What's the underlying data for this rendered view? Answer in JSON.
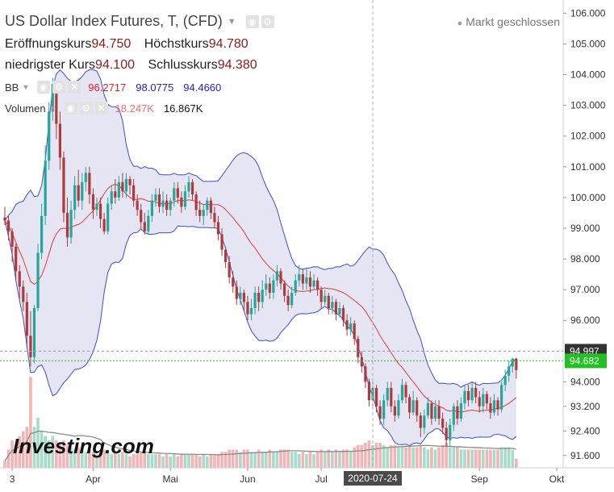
{
  "header": {
    "title": "US Dollar Index Futures, T, (CFD)",
    "market_status": "Markt geschlossen",
    "open_label": "Eröffnungskurs",
    "open_value": "94.750",
    "high_label": "Höchstkurs",
    "high_value": "94.780",
    "low_label": "niedrigster Kurs",
    "low_value": "94.100",
    "close_label": "Schlusskurs",
    "close_value": "94.380"
  },
  "indicators": {
    "bb_label": "BB",
    "bb_upper": "96.2717",
    "bb_middle": "98.0775",
    "bb_lower": "94.4660",
    "volume_label": "Volumen",
    "volume_1": "18.247K",
    "volume_2": "16.867K"
  },
  "icons": [
    "chevron-down-icon",
    "eye-icon",
    "gear-icon",
    "close-icon"
  ],
  "colors": {
    "up": "#26a69a",
    "down": "#b03a3a",
    "band_fill": "#dcdcf0",
    "band_line": "#3a4fd0",
    "middle_line": "#e03b3b",
    "last_price_box": "#333333",
    "close_line": "#22c022"
  },
  "watermark": "Investing.com",
  "chart_data": {
    "type": "candlestick",
    "y_ticks": [
      "106.000",
      "105.000",
      "104.000",
      "103.000",
      "102.000",
      "101.000",
      "100.000",
      "99.000",
      "98.000",
      "97.000",
      "96.000",
      "94.000",
      "93.200",
      "92.400",
      "91.600"
    ],
    "x_ticks": [
      "3",
      "Apr",
      "Mai",
      "Jun",
      "Jul",
      "Sep",
      "Okt"
    ],
    "crosshair_date": "2020-07-24",
    "last_price_label": "94.997",
    "close_price_label": "94.682",
    "ylim": [
      91.2,
      106.3
    ],
    "x_index_range": [
      0,
      142
    ],
    "crosshair_index": 100,
    "tick_indices": {
      "3": 2,
      "Apr": 24,
      "Mai": 45,
      "Jun": 66,
      "Jul": 86,
      "Sep": 129,
      "Okt": 150
    },
    "volume_max": 55000,
    "candles": [
      {
        "o": 99.35,
        "c": 99.25,
        "h": 99.7,
        "l": 99.1,
        "v": 3000
      },
      {
        "o": 99.25,
        "c": 98.9,
        "h": 99.4,
        "l": 98.6,
        "v": 8000
      },
      {
        "o": 98.9,
        "c": 98.4,
        "h": 99.0,
        "l": 97.9,
        "v": 12000
      },
      {
        "o": 98.4,
        "c": 97.6,
        "h": 98.5,
        "l": 97.3,
        "v": 10000
      },
      {
        "o": 97.6,
        "c": 97.1,
        "h": 97.8,
        "l": 96.7,
        "v": 14000
      },
      {
        "o": 97.1,
        "c": 96.6,
        "h": 97.3,
        "l": 96.3,
        "v": 16000
      },
      {
        "o": 96.6,
        "c": 95.5,
        "h": 96.9,
        "l": 95.1,
        "v": 18000
      },
      {
        "o": 95.5,
        "c": 94.8,
        "h": 96.3,
        "l": 94.5,
        "v": 40000
      },
      {
        "o": 94.8,
        "c": 96.4,
        "h": 96.5,
        "l": 94.6,
        "v": 18000
      },
      {
        "o": 96.4,
        "c": 98.2,
        "h": 98.5,
        "l": 96.3,
        "v": 22000
      },
      {
        "o": 98.2,
        "c": 99.4,
        "h": 99.8,
        "l": 98.0,
        "v": 16000
      },
      {
        "o": 99.4,
        "c": 101.2,
        "h": 101.7,
        "l": 99.1,
        "v": 14000
      },
      {
        "o": 101.2,
        "c": 102.8,
        "h": 103.1,
        "l": 100.9,
        "v": 12000
      },
      {
        "o": 102.8,
        "c": 103.7,
        "h": 103.9,
        "l": 102.5,
        "v": 14000
      },
      {
        "o": 103.7,
        "c": 102.4,
        "h": 103.8,
        "l": 101.9,
        "v": 12000
      },
      {
        "o": 102.4,
        "c": 101.3,
        "h": 102.8,
        "l": 100.9,
        "v": 10000
      },
      {
        "o": 101.3,
        "c": 99.5,
        "h": 101.5,
        "l": 99.2,
        "v": 12000
      },
      {
        "o": 99.5,
        "c": 98.7,
        "h": 100.0,
        "l": 98.4,
        "v": 10000
      },
      {
        "o": 98.7,
        "c": 99.6,
        "h": 99.9,
        "l": 98.5,
        "v": 9000
      },
      {
        "o": 99.6,
        "c": 100.4,
        "h": 100.7,
        "l": 99.3,
        "v": 8000
      },
      {
        "o": 100.4,
        "c": 99.9,
        "h": 100.9,
        "l": 99.7,
        "v": 9000
      },
      {
        "o": 99.9,
        "c": 100.5,
        "h": 100.8,
        "l": 99.6,
        "v": 8000
      },
      {
        "o": 100.5,
        "c": 100.8,
        "h": 101.0,
        "l": 100.2,
        "v": 7000
      },
      {
        "o": 100.8,
        "c": 100.1,
        "h": 101.0,
        "l": 99.8,
        "v": 8000
      },
      {
        "o": 100.1,
        "c": 99.6,
        "h": 100.3,
        "l": 99.3,
        "v": 7000
      },
      {
        "o": 99.6,
        "c": 99.8,
        "h": 100.0,
        "l": 99.4,
        "v": 6000
      },
      {
        "o": 99.8,
        "c": 99.3,
        "h": 100.0,
        "l": 99.0,
        "v": 7000
      },
      {
        "o": 99.3,
        "c": 98.9,
        "h": 99.5,
        "l": 98.8,
        "v": 8000
      },
      {
        "o": 98.9,
        "c": 99.8,
        "h": 100.0,
        "l": 98.8,
        "v": 7000
      },
      {
        "o": 99.8,
        "c": 100.2,
        "h": 100.4,
        "l": 99.6,
        "v": 6000
      },
      {
        "o": 100.2,
        "c": 100.0,
        "h": 100.6,
        "l": 99.8,
        "v": 7000
      },
      {
        "o": 100.0,
        "c": 100.5,
        "h": 100.7,
        "l": 99.9,
        "v": 6000
      },
      {
        "o": 100.5,
        "c": 100.2,
        "h": 100.8,
        "l": 100.0,
        "v": 7000
      },
      {
        "o": 100.2,
        "c": 100.6,
        "h": 100.8,
        "l": 100.0,
        "v": 6000
      },
      {
        "o": 100.6,
        "c": 100.4,
        "h": 100.7,
        "l": 100.1,
        "v": 5000
      },
      {
        "o": 100.4,
        "c": 99.9,
        "h": 100.6,
        "l": 99.7,
        "v": 6000
      },
      {
        "o": 99.9,
        "c": 99.6,
        "h": 100.1,
        "l": 99.4,
        "v": 6000
      },
      {
        "o": 99.6,
        "c": 99.2,
        "h": 99.8,
        "l": 99.0,
        "v": 7000
      },
      {
        "o": 99.2,
        "c": 98.9,
        "h": 99.5,
        "l": 98.8,
        "v": 7000
      },
      {
        "o": 98.9,
        "c": 99.4,
        "h": 99.6,
        "l": 98.8,
        "v": 6000
      },
      {
        "o": 99.4,
        "c": 99.9,
        "h": 100.1,
        "l": 99.2,
        "v": 6000
      },
      {
        "o": 99.9,
        "c": 100.1,
        "h": 100.3,
        "l": 99.7,
        "v": 6000
      },
      {
        "o": 100.1,
        "c": 99.7,
        "h": 100.3,
        "l": 99.5,
        "v": 6000
      },
      {
        "o": 99.7,
        "c": 99.9,
        "h": 100.2,
        "l": 99.5,
        "v": 5000
      },
      {
        "o": 99.9,
        "c": 99.6,
        "h": 100.1,
        "l": 99.4,
        "v": 6000
      },
      {
        "o": 99.6,
        "c": 99.9,
        "h": 100.0,
        "l": 99.4,
        "v": 5000
      },
      {
        "o": 99.9,
        "c": 100.3,
        "h": 100.5,
        "l": 99.7,
        "v": 6000
      },
      {
        "o": 100.3,
        "c": 100.0,
        "h": 100.5,
        "l": 99.8,
        "v": 5000
      },
      {
        "o": 100.0,
        "c": 99.7,
        "h": 100.2,
        "l": 99.5,
        "v": 6000
      },
      {
        "o": 99.7,
        "c": 100.2,
        "h": 100.4,
        "l": 99.6,
        "v": 6000
      },
      {
        "o": 100.2,
        "c": 100.5,
        "h": 100.7,
        "l": 100.0,
        "v": 6000
      },
      {
        "o": 100.5,
        "c": 100.1,
        "h": 100.6,
        "l": 99.9,
        "v": 6000
      },
      {
        "o": 100.1,
        "c": 99.6,
        "h": 100.2,
        "l": 99.4,
        "v": 6000
      },
      {
        "o": 99.6,
        "c": 99.4,
        "h": 99.9,
        "l": 99.2,
        "v": 5000
      },
      {
        "o": 99.4,
        "c": 99.6,
        "h": 99.8,
        "l": 99.1,
        "v": 6000
      },
      {
        "o": 99.6,
        "c": 99.9,
        "h": 100.0,
        "l": 99.4,
        "v": 5000
      },
      {
        "o": 99.9,
        "c": 99.5,
        "h": 100.0,
        "l": 99.3,
        "v": 6000
      },
      {
        "o": 99.5,
        "c": 99.2,
        "h": 99.7,
        "l": 99.0,
        "v": 6000
      },
      {
        "o": 99.2,
        "c": 98.8,
        "h": 99.4,
        "l": 98.6,
        "v": 6000
      },
      {
        "o": 98.8,
        "c": 98.3,
        "h": 99.0,
        "l": 98.1,
        "v": 7000
      },
      {
        "o": 98.3,
        "c": 97.9,
        "h": 98.4,
        "l": 97.7,
        "v": 7000
      },
      {
        "o": 97.9,
        "c": 97.4,
        "h": 98.1,
        "l": 97.2,
        "v": 8000
      },
      {
        "o": 97.4,
        "c": 97.1,
        "h": 97.6,
        "l": 96.9,
        "v": 8000
      },
      {
        "o": 97.1,
        "c": 96.7,
        "h": 97.3,
        "l": 96.5,
        "v": 8000
      },
      {
        "o": 96.7,
        "c": 96.9,
        "h": 97.1,
        "l": 96.5,
        "v": 7000
      },
      {
        "o": 96.9,
        "c": 96.6,
        "h": 97.0,
        "l": 96.3,
        "v": 8000
      },
      {
        "o": 96.6,
        "c": 96.2,
        "h": 96.8,
        "l": 96.0,
        "v": 8000
      },
      {
        "o": 96.2,
        "c": 96.4,
        "h": 96.7,
        "l": 96.0,
        "v": 7000
      },
      {
        "o": 96.4,
        "c": 96.9,
        "h": 97.1,
        "l": 96.2,
        "v": 7000
      },
      {
        "o": 96.9,
        "c": 96.6,
        "h": 97.1,
        "l": 96.3,
        "v": 8000
      },
      {
        "o": 96.6,
        "c": 97.0,
        "h": 97.3,
        "l": 96.4,
        "v": 7000
      },
      {
        "o": 97.0,
        "c": 97.2,
        "h": 97.5,
        "l": 96.8,
        "v": 7000
      },
      {
        "o": 97.2,
        "c": 96.9,
        "h": 97.4,
        "l": 96.7,
        "v": 8000
      },
      {
        "o": 96.9,
        "c": 97.3,
        "h": 97.5,
        "l": 96.7,
        "v": 7000
      },
      {
        "o": 97.3,
        "c": 97.6,
        "h": 97.8,
        "l": 97.1,
        "v": 7000
      },
      {
        "o": 97.6,
        "c": 97.2,
        "h": 97.7,
        "l": 97.0,
        "v": 8000
      },
      {
        "o": 97.2,
        "c": 96.8,
        "h": 97.3,
        "l": 96.6,
        "v": 8000
      },
      {
        "o": 96.8,
        "c": 96.5,
        "h": 97.0,
        "l": 96.3,
        "v": 8000
      },
      {
        "o": 96.5,
        "c": 96.9,
        "h": 97.1,
        "l": 96.4,
        "v": 7000
      },
      {
        "o": 96.9,
        "c": 97.3,
        "h": 97.5,
        "l": 96.8,
        "v": 7000
      },
      {
        "o": 97.3,
        "c": 97.5,
        "h": 97.8,
        "l": 97.1,
        "v": 6000
      },
      {
        "o": 97.5,
        "c": 97.2,
        "h": 97.7,
        "l": 97.0,
        "v": 7000
      },
      {
        "o": 97.2,
        "c": 97.4,
        "h": 97.7,
        "l": 97.0,
        "v": 6000
      },
      {
        "o": 97.4,
        "c": 97.1,
        "h": 97.6,
        "l": 96.9,
        "v": 7000
      },
      {
        "o": 97.1,
        "c": 97.3,
        "h": 97.5,
        "l": 97.0,
        "v": 6000
      },
      {
        "o": 97.3,
        "c": 97.0,
        "h": 97.4,
        "l": 96.8,
        "v": 7000
      },
      {
        "o": 97.0,
        "c": 96.6,
        "h": 97.1,
        "l": 96.4,
        "v": 8000
      },
      {
        "o": 96.6,
        "c": 96.8,
        "h": 97.0,
        "l": 96.5,
        "v": 7000
      },
      {
        "o": 96.8,
        "c": 96.4,
        "h": 96.9,
        "l": 96.2,
        "v": 8000
      },
      {
        "o": 96.4,
        "c": 96.6,
        "h": 96.8,
        "l": 96.2,
        "v": 7000
      },
      {
        "o": 96.6,
        "c": 96.2,
        "h": 96.7,
        "l": 96.0,
        "v": 8000
      },
      {
        "o": 96.2,
        "c": 96.4,
        "h": 96.6,
        "l": 96.1,
        "v": 7000
      },
      {
        "o": 96.4,
        "c": 96.0,
        "h": 96.5,
        "l": 95.8,
        "v": 8000
      },
      {
        "o": 96.0,
        "c": 95.7,
        "h": 96.2,
        "l": 95.5,
        "v": 8000
      },
      {
        "o": 95.7,
        "c": 95.9,
        "h": 96.1,
        "l": 95.5,
        "v": 7000
      },
      {
        "o": 95.9,
        "c": 95.4,
        "h": 96.0,
        "l": 95.2,
        "v": 9000
      },
      {
        "o": 95.4,
        "c": 94.8,
        "h": 95.5,
        "l": 94.6,
        "v": 10000
      },
      {
        "o": 94.8,
        "c": 94.5,
        "h": 95.0,
        "l": 94.3,
        "v": 10000
      },
      {
        "o": 94.5,
        "c": 94.0,
        "h": 94.6,
        "l": 93.8,
        "v": 11000
      },
      {
        "o": 94.0,
        "c": 93.4,
        "h": 94.1,
        "l": 93.2,
        "v": 12000
      },
      {
        "o": 93.4,
        "c": 93.8,
        "h": 94.0,
        "l": 93.2,
        "v": 10000
      },
      {
        "o": 93.8,
        "c": 93.2,
        "h": 93.9,
        "l": 93.0,
        "v": 11000
      },
      {
        "o": 93.2,
        "c": 92.8,
        "h": 93.4,
        "l": 92.6,
        "v": 11000
      },
      {
        "o": 92.8,
        "c": 93.4,
        "h": 93.6,
        "l": 92.6,
        "v": 10000
      },
      {
        "o": 93.4,
        "c": 93.8,
        "h": 94.0,
        "l": 93.2,
        "v": 9000
      },
      {
        "o": 93.8,
        "c": 93.2,
        "h": 94.0,
        "l": 93.0,
        "v": 10000
      },
      {
        "o": 93.2,
        "c": 92.9,
        "h": 93.4,
        "l": 92.7,
        "v": 10000
      },
      {
        "o": 92.9,
        "c": 93.4,
        "h": 93.6,
        "l": 92.8,
        "v": 9000
      },
      {
        "o": 93.4,
        "c": 93.9,
        "h": 94.1,
        "l": 93.3,
        "v": 9000
      },
      {
        "o": 93.9,
        "c": 93.5,
        "h": 94.0,
        "l": 93.3,
        "v": 9000
      },
      {
        "o": 93.5,
        "c": 93.0,
        "h": 93.6,
        "l": 92.8,
        "v": 10000
      },
      {
        "o": 93.0,
        "c": 93.4,
        "h": 93.7,
        "l": 92.9,
        "v": 9000
      },
      {
        "o": 93.4,
        "c": 92.9,
        "h": 93.5,
        "l": 92.7,
        "v": 9000
      },
      {
        "o": 92.9,
        "c": 92.5,
        "h": 93.0,
        "l": 92.2,
        "v": 10000
      },
      {
        "o": 92.5,
        "c": 92.9,
        "h": 93.1,
        "l": 92.3,
        "v": 9000
      },
      {
        "o": 92.9,
        "c": 93.3,
        "h": 93.5,
        "l": 92.8,
        "v": 8000
      },
      {
        "o": 93.3,
        "c": 92.8,
        "h": 93.4,
        "l": 92.6,
        "v": 9000
      },
      {
        "o": 92.8,
        "c": 93.2,
        "h": 93.4,
        "l": 92.7,
        "v": 8000
      },
      {
        "o": 93.2,
        "c": 92.8,
        "h": 93.4,
        "l": 92.6,
        "v": 9000
      },
      {
        "o": 92.8,
        "c": 92.5,
        "h": 93.0,
        "l": 92.3,
        "v": 10000
      },
      {
        "o": 92.5,
        "c": 92.1,
        "h": 92.7,
        "l": 91.9,
        "v": 11000
      },
      {
        "o": 92.1,
        "c": 92.6,
        "h": 92.8,
        "l": 91.9,
        "v": 9000
      },
      {
        "o": 92.6,
        "c": 93.2,
        "h": 93.3,
        "l": 92.4,
        "v": 9000
      },
      {
        "o": 93.2,
        "c": 92.8,
        "h": 93.4,
        "l": 92.6,
        "v": 9000
      },
      {
        "o": 92.8,
        "c": 93.3,
        "h": 93.5,
        "l": 92.7,
        "v": 8000
      },
      {
        "o": 93.3,
        "c": 93.7,
        "h": 93.9,
        "l": 93.1,
        "v": 8000
      },
      {
        "o": 93.7,
        "c": 93.4,
        "h": 93.9,
        "l": 93.2,
        "v": 8000
      },
      {
        "o": 93.4,
        "c": 93.8,
        "h": 94.0,
        "l": 93.3,
        "v": 8000
      },
      {
        "o": 93.8,
        "c": 93.5,
        "h": 94.0,
        "l": 93.3,
        "v": 8000
      },
      {
        "o": 93.5,
        "c": 93.2,
        "h": 93.7,
        "l": 93.0,
        "v": 8000
      },
      {
        "o": 93.2,
        "c": 93.6,
        "h": 93.8,
        "l": 93.0,
        "v": 8000
      },
      {
        "o": 93.6,
        "c": 93.3,
        "h": 93.7,
        "l": 93.1,
        "v": 8000
      },
      {
        "o": 93.3,
        "c": 93.0,
        "h": 93.5,
        "l": 92.8,
        "v": 8000
      },
      {
        "o": 93.0,
        "c": 93.4,
        "h": 93.6,
        "l": 92.9,
        "v": 8000
      },
      {
        "o": 93.4,
        "c": 93.1,
        "h": 93.5,
        "l": 92.9,
        "v": 8000
      },
      {
        "o": 93.1,
        "c": 93.9,
        "h": 94.0,
        "l": 93.0,
        "v": 9000
      },
      {
        "o": 93.9,
        "c": 94.2,
        "h": 94.4,
        "l": 93.7,
        "v": 9000
      },
      {
        "o": 94.2,
        "c": 94.5,
        "h": 94.7,
        "l": 94.0,
        "v": 9000
      },
      {
        "o": 94.5,
        "c": 94.75,
        "h": 94.78,
        "l": 94.3,
        "v": 8000
      },
      {
        "o": 94.75,
        "c": 94.38,
        "h": 94.78,
        "l": 94.1,
        "v": 4000
      }
    ]
  }
}
